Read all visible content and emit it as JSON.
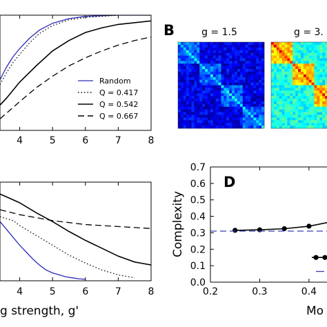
{
  "chart_data": [
    {
      "panel": "A",
      "type": "line",
      "letter": "",
      "xlabel": "",
      "ylabel": "",
      "xlim": [
        3.4,
        8
      ],
      "ylim": [
        0,
        1
      ],
      "xticks": [
        4,
        5,
        6,
        7,
        8
      ],
      "grid": false,
      "legend": {
        "placement": "bottom-right"
      },
      "series": [
        {
          "name": "Random",
          "color": "#2a2ab8",
          "dash": "solid",
          "x": [
            3.4,
            3.6,
            3.8,
            4.0,
            4.3,
            4.6,
            5.0,
            5.5,
            6.0,
            7.0,
            8.0
          ],
          "y": [
            0.44,
            0.55,
            0.64,
            0.71,
            0.8,
            0.87,
            0.93,
            0.97,
            0.99,
            1.0,
            1.0
          ]
        },
        {
          "name": "Q = 0.417",
          "color": "#000000",
          "dash": "dotted",
          "x": [
            3.4,
            3.6,
            3.8,
            4.0,
            4.3,
            4.6,
            5.0,
            5.5,
            6.0,
            7.0,
            8.0
          ],
          "y": [
            0.4,
            0.5,
            0.59,
            0.66,
            0.76,
            0.84,
            0.91,
            0.96,
            0.98,
            1.0,
            1.0
          ]
        },
        {
          "name": "Q = 0.542",
          "color": "#000000",
          "dash": "solid",
          "x": [
            3.4,
            3.6,
            3.8,
            4.0,
            4.5,
            5.0,
            5.5,
            6.0,
            6.5,
            7.0,
            8.0
          ],
          "y": [
            0.22,
            0.28,
            0.35,
            0.42,
            0.56,
            0.69,
            0.78,
            0.85,
            0.89,
            0.92,
            0.95
          ]
        },
        {
          "name": "Q = 0.667",
          "color": "#000000",
          "dash": "dashed",
          "x": [
            3.4,
            4.0,
            4.5,
            5.0,
            5.5,
            6.0,
            6.5,
            7.0,
            7.5,
            8.0
          ],
          "y": [
            0.1,
            0.25,
            0.37,
            0.47,
            0.56,
            0.63,
            0.69,
            0.74,
            0.78,
            0.81
          ]
        }
      ]
    },
    {
      "panel": "B",
      "type": "heatmap",
      "letter": "B",
      "matrices": [
        {
          "title": "g = 1.5",
          "blocks": 4,
          "colormap": "jet",
          "background": 0.1,
          "block_value": 0.22,
          "diagonal": 0.35
        },
        {
          "title": "g = 3.",
          "blocks": 4,
          "colormap": "jet",
          "background": 0.4,
          "block_value": 0.68,
          "diagonal": 0.85
        }
      ]
    },
    {
      "panel": "C",
      "type": "line",
      "letter": "",
      "xlabel": "g strength, g'",
      "ylabel": "",
      "xlim": [
        3.4,
        8
      ],
      "ylim": [
        0,
        1
      ],
      "xticks": [
        4,
        5,
        6,
        7,
        8
      ],
      "grid": false,
      "series": [
        {
          "name": "Random",
          "color": "#2a2ab8",
          "dash": "solid",
          "x": [
            3.4,
            3.6,
            3.8,
            4.0,
            4.2,
            4.4,
            4.6,
            4.8,
            5.0,
            5.2,
            5.4,
            5.6,
            5.8,
            6.0
          ],
          "y": [
            0.6,
            0.52,
            0.44,
            0.36,
            0.29,
            0.22,
            0.16,
            0.11,
            0.08,
            0.06,
            0.04,
            0.03,
            0.02,
            0.015
          ]
        },
        {
          "name": "Q = 0.417",
          "color": "#000000",
          "dash": "dotted",
          "x": [
            3.4,
            3.8,
            4.0,
            4.5,
            5.0,
            5.5,
            6.0,
            6.5,
            7.0,
            7.5
          ],
          "y": [
            0.65,
            0.61,
            0.56,
            0.46,
            0.36,
            0.26,
            0.18,
            0.11,
            0.06,
            0.03
          ]
        },
        {
          "name": "Q = 0.542",
          "color": "#000000",
          "dash": "solid",
          "x": [
            3.4,
            3.6,
            4.0,
            4.5,
            5.0,
            5.5,
            6.0,
            6.5,
            7.0,
            7.5,
            8.0
          ],
          "y": [
            0.88,
            0.85,
            0.79,
            0.69,
            0.6,
            0.5,
            0.41,
            0.33,
            0.25,
            0.19,
            0.16
          ]
        },
        {
          "name": "Q = 0.667",
          "color": "#000000",
          "dash": "dashed",
          "x": [
            3.4,
            4.0,
            5.0,
            6.0,
            7.0,
            8.0
          ],
          "y": [
            0.72,
            0.67,
            0.61,
            0.57,
            0.55,
            0.53
          ]
        }
      ]
    },
    {
      "panel": "D",
      "type": "line",
      "letter": "D",
      "xlabel": "Mo",
      "ylabel": "Complexity",
      "xlim": [
        0.2,
        0.48
      ],
      "ylim": [
        0,
        0.7
      ],
      "xticks": [
        0.2,
        0.3,
        0.4
      ],
      "yticks": [
        0.0,
        0.1,
        0.2,
        0.3,
        0.4,
        0.5,
        0.6,
        0.7
      ],
      "grid": false,
      "series": [
        {
          "name": "",
          "color": "#000000",
          "dash": "solid",
          "markers": true,
          "x": [
            0.25,
            0.3,
            0.35,
            0.4,
            0.45,
            0.475
          ],
          "y": [
            0.315,
            0.318,
            0.325,
            0.34,
            0.37,
            0.41
          ]
        },
        {
          "name": "",
          "color": "#3a3ab8",
          "dash": "dashed",
          "markers": false,
          "x": [
            0.2,
            0.48
          ],
          "y": [
            0.31,
            0.31
          ]
        }
      ],
      "legend_fragments": [
        {
          "kind": "marker-line",
          "y": 0.15
        },
        {
          "kind": "dash-blue",
          "y": 0.065
        }
      ]
    }
  ],
  "legend_labels": {
    "random": "Random",
    "q1": "Q = 0.417",
    "q2": "Q = 0.542",
    "q3": "Q = 0.667"
  }
}
